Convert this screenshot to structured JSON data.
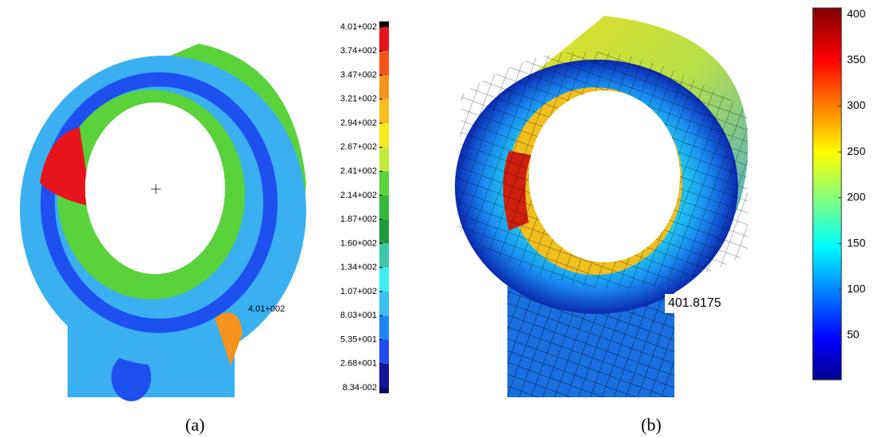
{
  "panel_a": {
    "colorbar": {
      "labels": [
        "4.01+002",
        "3.74+002",
        "3.47+002",
        "3.21+002",
        "2.94+002",
        "2.67+002",
        "2.41+002",
        "2.14+002",
        "1.87+002",
        "1.60+002",
        "1.34+002",
        "1.07+002",
        "8.03+001",
        "5.35+001",
        "2.68+001",
        "8.34-002"
      ],
      "colors": [
        "#e8141c",
        "#f2561a",
        "#f7921c",
        "#fbbe1c",
        "#f5ea1c",
        "#c4ec3a",
        "#5ad23c",
        "#36b83c",
        "#1e9a3c",
        "#3cc8a8",
        "#40eef0",
        "#3cc0f0",
        "#1e86f0",
        "#1e4cf0",
        "#14149c"
      ]
    },
    "annotation": "4.01+002",
    "caption": "(a)"
  },
  "panel_b": {
    "colorbar": {
      "lim": [
        1.5,
        407
      ],
      "ticks": [
        50,
        100,
        150,
        200,
        250,
        300,
        350,
        400
      ]
    },
    "annotation": "401.8175",
    "caption": "(b)"
  }
}
